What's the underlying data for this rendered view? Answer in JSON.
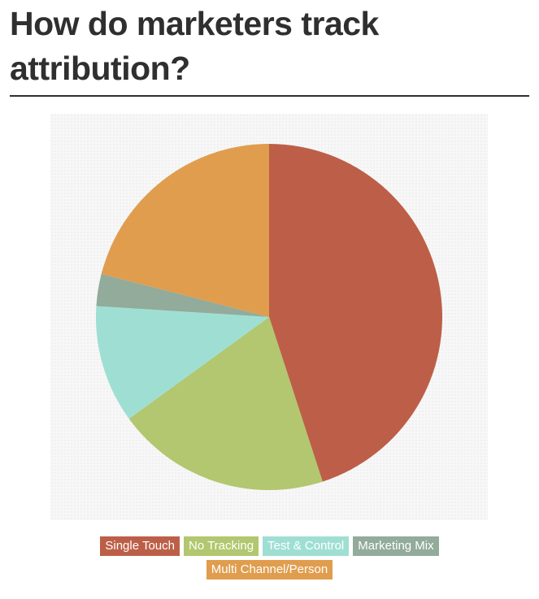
{
  "title": "How do marketers track attribution?",
  "chart_data": {
    "type": "pie",
    "title": "How do marketers track attribution?",
    "slices": [
      {
        "label": "Single Touch",
        "value": 45,
        "color": "#bd5f48"
      },
      {
        "label": "No Tracking",
        "value": 20,
        "color": "#b2c76f"
      },
      {
        "label": "Test & Control",
        "value": 11,
        "color": "#9fdfd3"
      },
      {
        "label": "Marketing Mix",
        "value": 3,
        "color": "#92ab9b"
      },
      {
        "label": "Multi Channel/Person",
        "value": 21,
        "color": "#e09d4e"
      }
    ],
    "legend_position": "bottom"
  }
}
